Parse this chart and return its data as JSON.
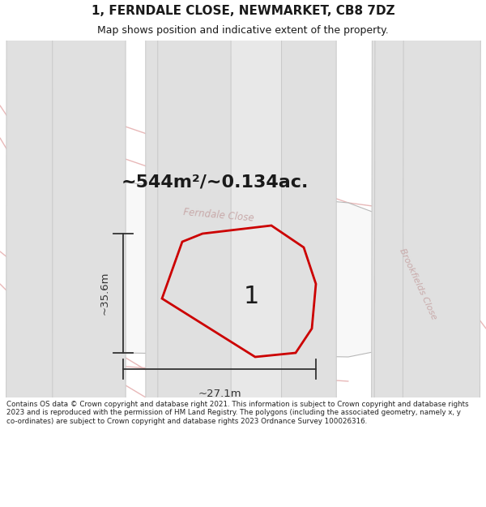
{
  "title_line1": "1, FERNDALE CLOSE, NEWMARKET, CB8 7DZ",
  "title_line2": "Map shows position and indicative extent of the property.",
  "area_label": "~544m²/~0.134ac.",
  "height_label": "~35.6m",
  "width_label": "~27.1m",
  "plot_number": "1",
  "street_label1": "Ferndale Close",
  "street_label2": "Brookfields Close",
  "footer_text": "Contains OS data © Crown copyright and database right 2021. This information is subject to Crown copyright and database rights 2023 and is reproduced with the permission of HM Land Registry. The polygons (including the associated geometry, namely x, y co-ordinates) are subject to Crown copyright and database rights 2023 Ordnance Survey 100026316.",
  "bg_color": "#ffffff",
  "map_bg": "#ffffff",
  "road_line_color": "#e8b8b8",
  "road_line_lw": 1.0,
  "building_fill": "#e0e0e0",
  "building_edge": "#c8c8c8",
  "block_fill": "#f0f0f0",
  "block_edge": "#c0c0c0",
  "plot_edge": "#cc0000",
  "plot_edge_lw": 2.0,
  "street_text_color": "#c8aaaa",
  "dim_color": "#333333",
  "title_color": "#1a1a1a",
  "area_label_color": "#1a1a1a",
  "footer_color": "#222222"
}
